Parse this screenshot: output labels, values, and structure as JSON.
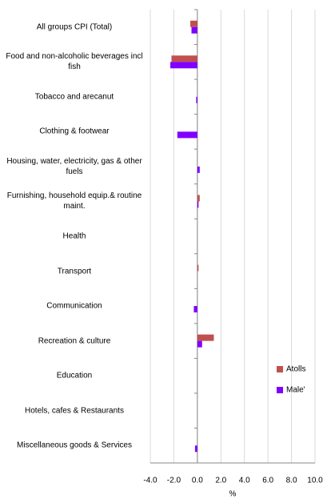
{
  "chart_data": {
    "type": "barh",
    "categories": [
      "All groups CPI (Total)",
      "Food and non-alcoholic beverages incl fish",
      "Tobacco and arecanut",
      "Clothing & footwear",
      "Housing, water, electricity, gas & other fuels",
      "Furnishing, household equip.& routine maint.",
      "Health",
      "Transport",
      "Communication",
      "Recreation & culture",
      "Education",
      "Hotels, cafes & Restaurants",
      "Miscellaneous goods & Services"
    ],
    "series": [
      {
        "name": "Atolls",
        "color": "#c0504d",
        "values": [
          -0.6,
          -2.2,
          0,
          0,
          0,
          0.2,
          0,
          0.1,
          0,
          1.4,
          0,
          0,
          0
        ]
      },
      {
        "name": "Male'",
        "color": "#8000ff",
        "values": [
          -0.5,
          -2.3,
          -0.1,
          -1.7,
          0.2,
          0.1,
          0,
          0,
          -0.3,
          0.4,
          0,
          0,
          -0.2
        ]
      }
    ],
    "x_label": "%",
    "xlim": [
      -4,
      10
    ],
    "xticks": [
      {
        "value": -4,
        "label": "-4.0"
      },
      {
        "value": -2,
        "label": "-2.0"
      },
      {
        "value": 0,
        "label": "0.0"
      },
      {
        "value": 2,
        "label": "2.0"
      },
      {
        "value": 4,
        "label": "4.0"
      },
      {
        "value": 6,
        "label": "6.0"
      },
      {
        "value": 8,
        "label": "8.0"
      },
      {
        "value": 10,
        "label": "10.0"
      }
    ],
    "grid": true,
    "legend": "right"
  }
}
